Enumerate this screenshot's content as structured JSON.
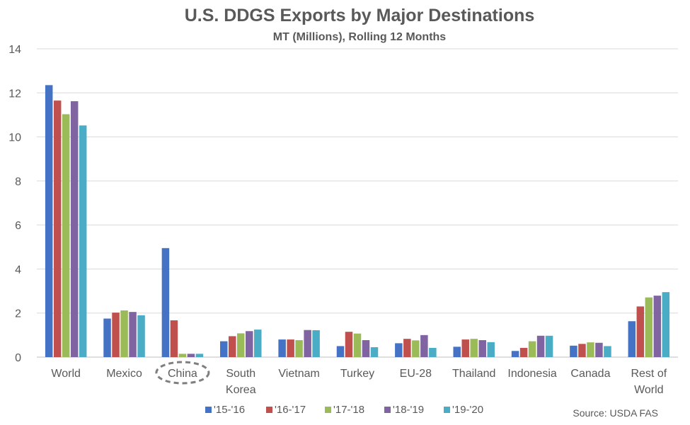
{
  "chart_data": {
    "type": "bar",
    "title": "U.S. DDGS Exports by Major Destinations",
    "subtitle": "MT (Millions), Rolling 12 Months",
    "categories": [
      "World",
      "Mexico",
      "China",
      "South Korea",
      "Vietnam",
      "Turkey",
      "EU-28",
      "Thailand",
      "Indonesia",
      "Canada",
      "Rest of World"
    ],
    "category_lines": [
      [
        "World"
      ],
      [
        "Mexico"
      ],
      [
        "China"
      ],
      [
        "South",
        "Korea"
      ],
      [
        "Vietnam"
      ],
      [
        "Turkey"
      ],
      [
        "EU-28"
      ],
      [
        "Thailand"
      ],
      [
        "Indonesia"
      ],
      [
        "Canada"
      ],
      [
        "Rest of",
        "World"
      ]
    ],
    "ylim": [
      0,
      14
    ],
    "yticks": [
      0,
      2,
      4,
      6,
      8,
      10,
      12,
      14
    ],
    "grid": true,
    "legend_position": "bottom",
    "highlighted_category": "China",
    "series": [
      {
        "name": "'15-'16",
        "color": "#4472C4",
        "values": [
          12.35,
          1.75,
          4.95,
          0.72,
          0.8,
          0.5,
          0.63,
          0.47,
          0.28,
          0.52,
          1.63
        ]
      },
      {
        "name": "'16-'17",
        "color": "#C0504D",
        "values": [
          11.65,
          2.02,
          1.67,
          0.95,
          0.8,
          1.15,
          0.83,
          0.8,
          0.42,
          0.6,
          2.3
        ]
      },
      {
        "name": "'17-'18",
        "color": "#9BBB59",
        "values": [
          11.03,
          2.12,
          0.15,
          1.08,
          0.77,
          1.07,
          0.76,
          0.83,
          0.72,
          0.67,
          2.71
        ]
      },
      {
        "name": "'18-'19",
        "color": "#8064A2",
        "values": [
          11.62,
          2.05,
          0.15,
          1.18,
          1.23,
          0.77,
          1.0,
          0.77,
          0.97,
          0.65,
          2.79
        ]
      },
      {
        "name": "'19-'20",
        "color": "#4BACC6",
        "values": [
          10.52,
          1.9,
          0.15,
          1.25,
          1.22,
          0.45,
          0.42,
          0.68,
          0.97,
          0.5,
          2.95
        ]
      }
    ]
  },
  "source": "Source: USDA FAS"
}
